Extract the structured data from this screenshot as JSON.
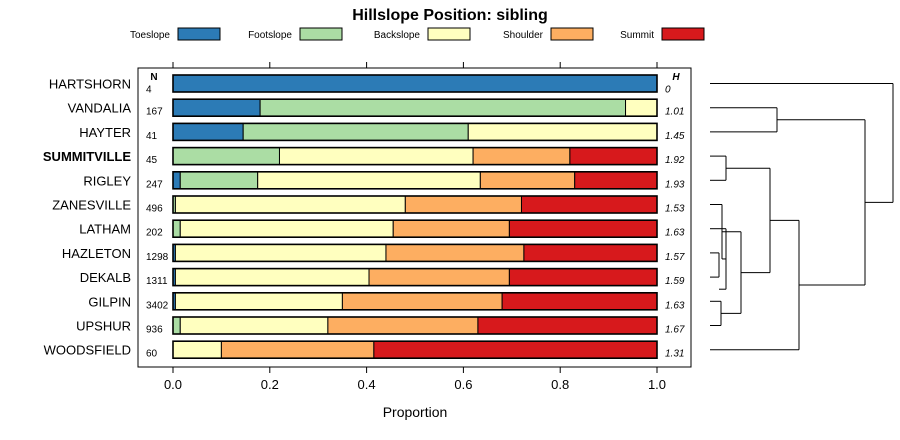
{
  "chart_data": {
    "type": "bar",
    "orientation": "horizontal",
    "stacked": true,
    "title": "Hillslope Position: sibling",
    "xlabel": "Proportion",
    "ylabel": "",
    "xlim": [
      0,
      1
    ],
    "x_ticks": [
      0.0,
      0.2,
      0.4,
      0.6,
      0.8,
      1.0
    ],
    "x_tick_labels": [
      "0.0",
      "0.2",
      "0.4",
      "0.6",
      "0.8",
      "1.0"
    ],
    "n_header": "N",
    "h_header": "H",
    "legend_placement": "top",
    "legend": [
      {
        "name": "Toeslope",
        "color": "#2c7bb6"
      },
      {
        "name": "Footslope",
        "color": "#abdda4"
      },
      {
        "name": "Backslope",
        "color": "#ffffbf"
      },
      {
        "name": "Shoulder",
        "color": "#fdae61"
      },
      {
        "name": "Summit",
        "color": "#d7191c"
      }
    ],
    "categories": [
      "HARTSHORN",
      "VANDALIA",
      "HAYTER",
      "SUMMITVILLE",
      "RIGLEY",
      "ZANESVILLE",
      "LATHAM",
      "HAZLETON",
      "DEKALB",
      "GILPIN",
      "UPSHUR",
      "WOODSFIELD"
    ],
    "highlight": "SUMMITVILLE",
    "n": [
      "4",
      "167",
      "41",
      "45",
      "247",
      "496",
      "202",
      "1298",
      "1311",
      "3402",
      "936",
      "60"
    ],
    "h": [
      "0",
      "1.01",
      "1.45",
      "1.92",
      "1.93",
      "1.53",
      "1.63",
      "1.57",
      "1.59",
      "1.63",
      "1.67",
      "1.31"
    ],
    "series": [
      {
        "name": "Toeslope",
        "values": [
          1.0,
          0.18,
          0.145,
          0.0,
          0.015,
          0.0,
          0.0,
          0.005,
          0.005,
          0.005,
          0.0,
          0.0
        ]
      },
      {
        "name": "Footslope",
        "values": [
          0.0,
          0.755,
          0.465,
          0.22,
          0.16,
          0.005,
          0.015,
          0.0,
          0.0,
          0.0,
          0.015,
          0.0
        ]
      },
      {
        "name": "Backslope",
        "values": [
          0.0,
          0.065,
          0.39,
          0.4,
          0.46,
          0.475,
          0.44,
          0.435,
          0.4,
          0.345,
          0.305,
          0.1
        ]
      },
      {
        "name": "Shoulder",
        "values": [
          0.0,
          0.0,
          0.0,
          0.2,
          0.195,
          0.24,
          0.24,
          0.285,
          0.29,
          0.33,
          0.31,
          0.315
        ]
      },
      {
        "name": "Summit",
        "values": [
          0.0,
          0.0,
          0.0,
          0.18,
          0.17,
          0.28,
          0.305,
          0.275,
          0.305,
          0.32,
          0.37,
          0.585
        ]
      }
    ]
  }
}
